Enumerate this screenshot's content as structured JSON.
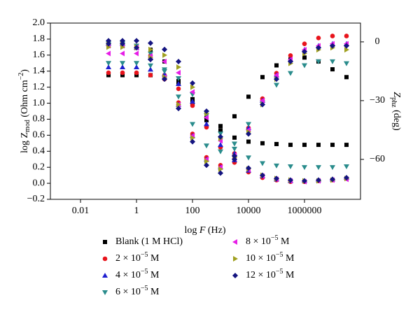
{
  "chart_data": {
    "type": "scatter",
    "x_label": [
      "log ",
      "F",
      " (Hz)"
    ],
    "y_label": [
      "log Z",
      "mod",
      " (Ohm cm",
      "−2",
      ")"
    ],
    "y2_label": [
      "Z",
      "phz",
      " (deg)"
    ],
    "xscale": "log",
    "x": [
      0.1,
      0.316,
      1,
      3.16,
      10,
      31.6,
      100,
      316,
      1000,
      3160,
      10000,
      31600,
      100000,
      316000,
      1000000,
      3160000,
      10000000,
      31600000
    ],
    "xlim": [
      0.00084,
      100000000
    ],
    "xticks": [
      0.01,
      1,
      100,
      10000,
      1000000
    ],
    "ylim": [
      -0.2,
      2.0
    ],
    "yticks": [
      {
        "value": -0.2,
        "label": "−0.2"
      },
      {
        "value": 0,
        "label": "0.0"
      },
      0.2,
      0.4,
      0.6,
      0.8,
      {
        "value": 1,
        "label": "1.0"
      },
      1.2,
      1.4,
      1.6,
      1.8,
      {
        "value": 2,
        "label": "2.0"
      }
    ],
    "y2lim": [
      -80.4,
      9.6
    ],
    "y2ticks": [
      0,
      {
        "value": -30,
        "label": "−30"
      },
      {
        "value": -60,
        "label": "−60"
      }
    ],
    "series": [
      {
        "name": [
          "Blank (1 M HCl)"
        ],
        "color": "#000000",
        "marker": "square",
        "values": [
          1.35,
          1.35,
          1.35,
          1.35,
          1.33,
          1.25,
          1.05,
          0.82,
          0.66,
          0.57,
          0.52,
          0.5,
          0.49,
          0.48,
          0.48,
          0.48,
          0.48,
          0.48
        ],
        "y2_values": [
          -1,
          -1,
          -2,
          -4,
          -10,
          -20,
          -31,
          -40,
          -43,
          -38,
          -28,
          -18,
          -12,
          -9,
          -8,
          -10,
          -14,
          -18
        ]
      },
      {
        "name": [
          "2 × 10",
          "−5",
          " M"
        ],
        "color": "#e8141c",
        "marker": "circle",
        "values": [
          1.38,
          1.38,
          1.38,
          1.35,
          1.3,
          1.18,
          0.97,
          0.7,
          0.45,
          0.26,
          0.14,
          0.07,
          0.04,
          0.02,
          0.02,
          0.03,
          0.04,
          0.06
        ],
        "y2_values": [
          -1,
          -1,
          -2,
          -7,
          -17,
          -31,
          -47,
          -59,
          -63,
          -57,
          -44,
          -29,
          -16,
          -7,
          -1,
          2,
          3,
          3
        ]
      },
      {
        "name": [
          "4 × 10",
          "−5",
          " M"
        ],
        "color": "#1f1fd0",
        "marker": "triangle-up",
        "values": [
          1.45,
          1.45,
          1.45,
          1.42,
          1.36,
          1.24,
          1.02,
          0.74,
          0.48,
          0.29,
          0.16,
          0.09,
          0.05,
          0.03,
          0.03,
          0.04,
          0.05,
          0.07
        ],
        "y2_values": [
          -1,
          -1,
          -3,
          -8,
          -18,
          -32,
          -48,
          -60,
          -64,
          -57,
          -44,
          -30,
          -17,
          -9,
          -4,
          -2,
          -1,
          -1
        ]
      },
      {
        "name": [
          "6 × 10",
          "−5",
          " M"
        ],
        "color": "#2a8c8c",
        "marker": "triangle-down",
        "values": [
          1.5,
          1.5,
          1.5,
          1.47,
          1.42,
          1.31,
          1.11,
          0.85,
          0.62,
          0.43,
          0.32,
          0.25,
          0.22,
          0.21,
          0.2,
          0.2,
          0.2,
          0.21
        ],
        "y2_values": [
          -1,
          -1,
          -2,
          -6,
          -15,
          -28,
          -42,
          -53,
          -56,
          -52,
          -42,
          -31,
          -22,
          -16,
          -12,
          -10,
          -10,
          -11
        ]
      },
      {
        "name": [
          "8 × 10",
          "−5",
          " M"
        ],
        "color": "#e61ee6",
        "marker": "triangle-left",
        "values": [
          1.62,
          1.62,
          1.62,
          1.59,
          1.52,
          1.38,
          1.14,
          0.82,
          0.53,
          0.31,
          0.17,
          0.09,
          0.05,
          0.03,
          0.02,
          0.03,
          0.04,
          0.05
        ],
        "y2_values": [
          -2,
          -2,
          -3,
          -8,
          -18,
          -32,
          -48,
          -60,
          -64,
          -58,
          -45,
          -30,
          -17,
          -9,
          -4,
          -2,
          -1,
          -1
        ]
      },
      {
        "name": [
          "10 × 10",
          "−5",
          " M"
        ],
        "color": "#a0a020",
        "marker": "triangle-right",
        "values": [
          1.7,
          1.7,
          1.7,
          1.67,
          1.6,
          1.45,
          1.2,
          0.87,
          0.56,
          0.33,
          0.18,
          0.1,
          0.06,
          0.04,
          0.03,
          0.03,
          0.04,
          0.06
        ],
        "y2_values": [
          -1,
          -1,
          -3,
          -8,
          -18,
          -32,
          -49,
          -61,
          -65,
          -59,
          -46,
          -32,
          -19,
          -11,
          -6,
          -4,
          -3,
          -4
        ]
      },
      {
        "name": [
          "12 × 10",
          "−5",
          " M"
        ],
        "color": "#141480",
        "marker": "diamond",
        "values": [
          1.78,
          1.78,
          1.78,
          1.75,
          1.67,
          1.52,
          1.25,
          0.9,
          0.58,
          0.34,
          0.19,
          0.1,
          0.06,
          0.04,
          0.03,
          0.04,
          0.05,
          0.07
        ],
        "y2_values": [
          -1,
          -1,
          -3,
          -9,
          -19,
          -34,
          -51,
          -63,
          -67,
          -60,
          -47,
          -32,
          -19,
          -10,
          -5,
          -3,
          -2,
          -2
        ]
      }
    ]
  }
}
